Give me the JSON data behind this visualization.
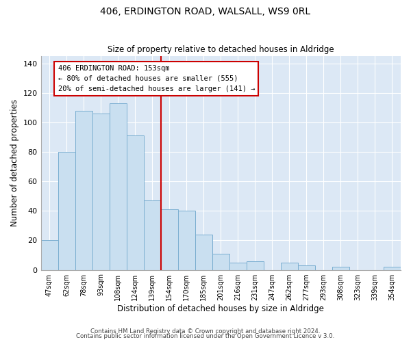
{
  "title": "406, ERDINGTON ROAD, WALSALL, WS9 0RL",
  "subtitle": "Size of property relative to detached houses in Aldridge",
  "xlabel": "Distribution of detached houses by size in Aldridge",
  "ylabel": "Number of detached properties",
  "bar_labels": [
    "47sqm",
    "62sqm",
    "78sqm",
    "93sqm",
    "108sqm",
    "124sqm",
    "139sqm",
    "154sqm",
    "170sqm",
    "185sqm",
    "201sqm",
    "216sqm",
    "231sqm",
    "247sqm",
    "262sqm",
    "277sqm",
    "293sqm",
    "308sqm",
    "323sqm",
    "339sqm",
    "354sqm"
  ],
  "bar_heights": [
    20,
    80,
    108,
    106,
    113,
    91,
    47,
    41,
    40,
    24,
    11,
    5,
    6,
    0,
    5,
    3,
    0,
    2,
    0,
    0,
    2
  ],
  "bar_color": "#c9dff0",
  "bar_edge_color": "#7aaed0",
  "vline_color": "#cc0000",
  "ylim": [
    0,
    145
  ],
  "yticks": [
    0,
    20,
    40,
    60,
    80,
    100,
    120,
    140
  ],
  "annotation_title": "406 ERDINGTON ROAD: 153sqm",
  "annotation_line1": "← 80% of detached houses are smaller (555)",
  "annotation_line2": "20% of semi-detached houses are larger (141) →",
  "annotation_box_color": "#ffffff",
  "annotation_box_edge": "#cc0000",
  "footer_line1": "Contains HM Land Registry data © Crown copyright and database right 2024.",
  "footer_line2": "Contains public sector information licensed under the Open Government Licence v 3.0.",
  "bg_color": "#ffffff",
  "plot_bg_color": "#dce8f5"
}
